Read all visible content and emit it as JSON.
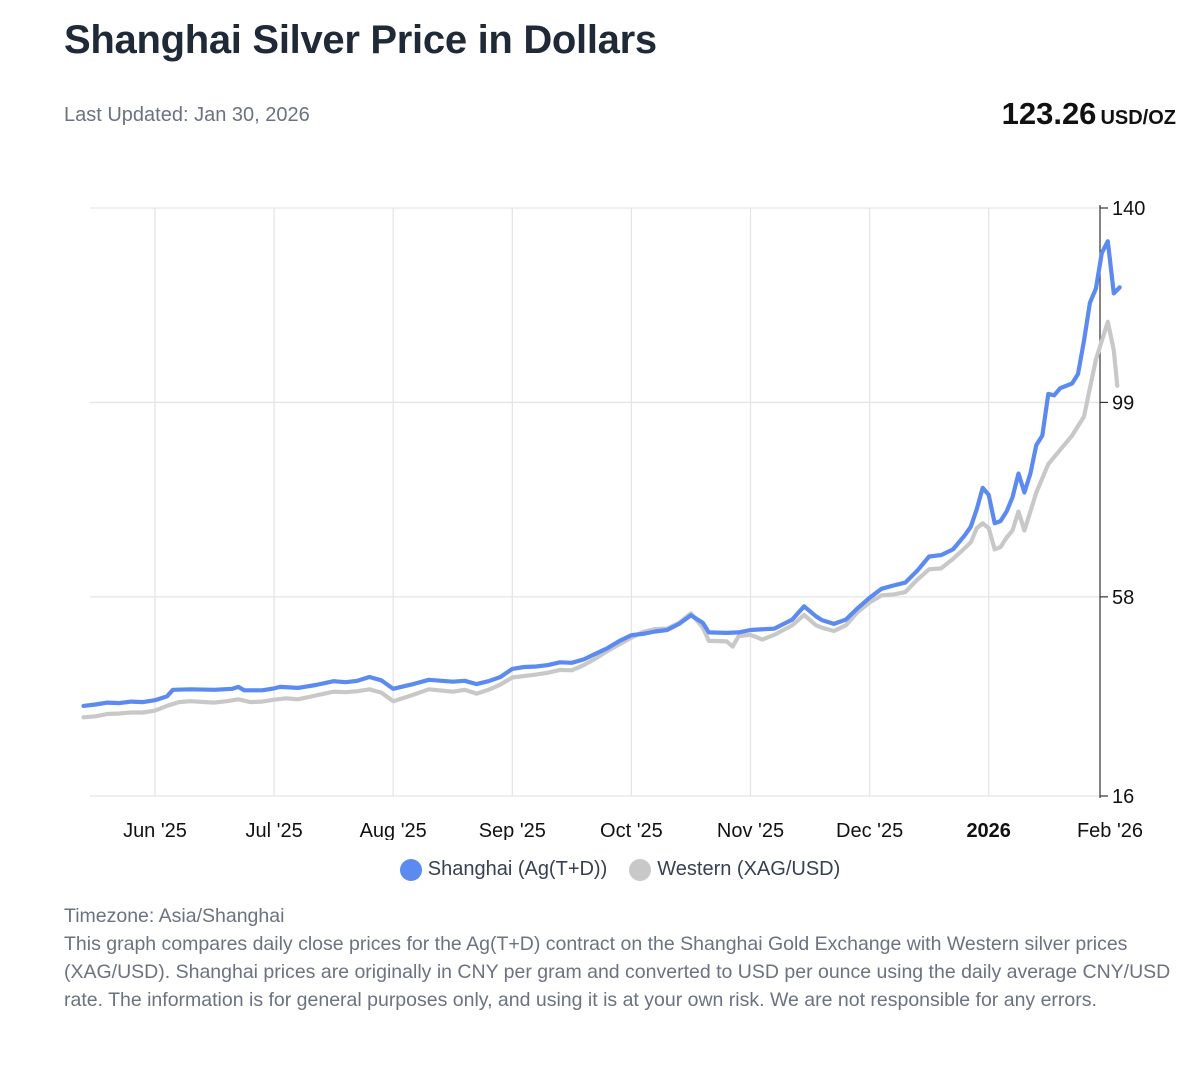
{
  "page": {
    "title": "Shanghai Silver Price in Dollars",
    "last_updated": "Last Updated: Jan 30, 2026",
    "current_price": "123.26",
    "current_unit": "USD/OZ"
  },
  "legend": {
    "shanghai": "Shanghai (Ag(T+D))",
    "western": "Western (XAG/USD)"
  },
  "footer": {
    "timezone": "Timezone: Asia/Shanghai",
    "description": "This graph compares daily close prices for the Ag(T+D) contract on the Shanghai Gold Exchange with Western silver prices (XAG/USD). Shanghai prices are originally in CNY per gram and converted to USD per ounce using the daily average CNY/USD rate. The information is for general purposes only, and using it is at your own risk. We are not responsible for any errors."
  },
  "colors": {
    "shanghai": "#5b8af0",
    "western": "#c8c8c8",
    "grid": "#e5e5e5",
    "axis": "#333333"
  },
  "chart_data": {
    "type": "line",
    "title": "Shanghai Silver Price in Dollars",
    "xlabel": "",
    "ylabel": "USD/OZ",
    "ylim": [
      16,
      140
    ],
    "y_ticks": [
      16,
      58,
      99,
      140
    ],
    "x_range": [
      -0.6,
      8.95
    ],
    "x_ticks": [
      {
        "label": "Jun '25",
        "x": 0,
        "bold": false
      },
      {
        "label": "Jul '25",
        "x": 1,
        "bold": false
      },
      {
        "label": "Aug '25",
        "x": 2,
        "bold": false
      },
      {
        "label": "Sep '25",
        "x": 3,
        "bold": false
      },
      {
        "label": "Oct '25",
        "x": 4,
        "bold": false
      },
      {
        "label": "Nov '25",
        "x": 5,
        "bold": false
      },
      {
        "label": "Dec '25",
        "x": 6,
        "bold": false
      },
      {
        "label": "2026",
        "x": 7,
        "bold": true
      },
      {
        "label": "Feb '26",
        "x": 8,
        "bold": false
      }
    ],
    "x_unit": "months since Jun 1, 2025",
    "grid": true,
    "legend_position": "bottom-center",
    "series": [
      {
        "name": "Shanghai (Ag(T+D))",
        "color": "#5b8af0",
        "points": [
          [
            -0.6,
            35.0
          ],
          [
            -0.5,
            35.3
          ],
          [
            -0.4,
            35.7
          ],
          [
            -0.3,
            35.6
          ],
          [
            -0.2,
            35.9
          ],
          [
            -0.1,
            35.8
          ],
          [
            0.0,
            36.2
          ],
          [
            0.1,
            37.0
          ],
          [
            0.15,
            38.4
          ],
          [
            0.3,
            38.5
          ],
          [
            0.5,
            38.4
          ],
          [
            0.65,
            38.6
          ],
          [
            0.7,
            39.0
          ],
          [
            0.75,
            38.3
          ],
          [
            0.9,
            38.3
          ],
          [
            1.0,
            38.7
          ],
          [
            1.05,
            39.0
          ],
          [
            1.2,
            38.8
          ],
          [
            1.35,
            39.4
          ],
          [
            1.5,
            40.2
          ],
          [
            1.6,
            40.0
          ],
          [
            1.7,
            40.3
          ],
          [
            1.8,
            41.1
          ],
          [
            1.9,
            40.4
          ],
          [
            2.0,
            38.6
          ],
          [
            2.15,
            39.5
          ],
          [
            2.3,
            40.5
          ],
          [
            2.5,
            40.1
          ],
          [
            2.6,
            40.3
          ],
          [
            2.7,
            39.6
          ],
          [
            2.8,
            40.2
          ],
          [
            2.9,
            41.1
          ],
          [
            3.0,
            42.8
          ],
          [
            3.1,
            43.2
          ],
          [
            3.2,
            43.3
          ],
          [
            3.3,
            43.6
          ],
          [
            3.4,
            44.2
          ],
          [
            3.5,
            44.1
          ],
          [
            3.6,
            44.8
          ],
          [
            3.7,
            46.0
          ],
          [
            3.8,
            47.2
          ],
          [
            3.9,
            48.7
          ],
          [
            4.0,
            49.9
          ],
          [
            4.1,
            50.2
          ],
          [
            4.2,
            50.7
          ],
          [
            4.3,
            51.0
          ],
          [
            4.4,
            52.3
          ],
          [
            4.5,
            54.1
          ],
          [
            4.6,
            52.5
          ],
          [
            4.65,
            50.5
          ],
          [
            4.8,
            50.4
          ],
          [
            4.9,
            50.5
          ],
          [
            5.0,
            51.0
          ],
          [
            5.2,
            51.3
          ],
          [
            5.35,
            53.2
          ],
          [
            5.45,
            56.0
          ],
          [
            5.55,
            53.9
          ],
          [
            5.6,
            53.1
          ],
          [
            5.7,
            52.3
          ],
          [
            5.8,
            53.2
          ],
          [
            5.9,
            55.6
          ],
          [
            6.0,
            57.8
          ],
          [
            6.1,
            59.7
          ],
          [
            6.2,
            60.4
          ],
          [
            6.3,
            61.0
          ],
          [
            6.4,
            63.5
          ],
          [
            6.5,
            66.5
          ],
          [
            6.6,
            66.8
          ],
          [
            6.7,
            68.0
          ],
          [
            6.8,
            71.0
          ],
          [
            6.85,
            72.8
          ],
          [
            6.9,
            76.5
          ],
          [
            6.95,
            81.0
          ],
          [
            7.0,
            79.5
          ],
          [
            7.05,
            73.5
          ],
          [
            7.1,
            74.0
          ],
          [
            7.15,
            76.0
          ],
          [
            7.2,
            79.0
          ],
          [
            7.25,
            84.0
          ],
          [
            7.3,
            80.0
          ],
          [
            7.35,
            84.0
          ],
          [
            7.4,
            90.0
          ],
          [
            7.45,
            92.0
          ],
          [
            7.5,
            100.8
          ],
          [
            7.55,
            100.5
          ],
          [
            7.6,
            102.0
          ],
          [
            7.7,
            103.0
          ],
          [
            7.75,
            105.0
          ],
          [
            7.8,
            112.0
          ],
          [
            7.85,
            120.0
          ],
          [
            7.9,
            123.0
          ],
          [
            7.95,
            130.5
          ],
          [
            8.0,
            133.0
          ],
          [
            8.05,
            122.0
          ],
          [
            8.1,
            123.26
          ]
        ]
      },
      {
        "name": "Western (XAG/USD)",
        "color": "#c8c8c8",
        "points": [
          [
            -0.6,
            32.6
          ],
          [
            -0.5,
            32.8
          ],
          [
            -0.4,
            33.3
          ],
          [
            -0.3,
            33.4
          ],
          [
            -0.2,
            33.6
          ],
          [
            -0.1,
            33.6
          ],
          [
            0.0,
            34.0
          ],
          [
            0.1,
            35.0
          ],
          [
            0.2,
            35.8
          ],
          [
            0.3,
            36.0
          ],
          [
            0.5,
            35.7
          ],
          [
            0.6,
            36.0
          ],
          [
            0.7,
            36.4
          ],
          [
            0.8,
            35.8
          ],
          [
            0.9,
            35.9
          ],
          [
            1.0,
            36.3
          ],
          [
            1.1,
            36.6
          ],
          [
            1.2,
            36.4
          ],
          [
            1.35,
            37.2
          ],
          [
            1.5,
            38.0
          ],
          [
            1.6,
            37.9
          ],
          [
            1.7,
            38.1
          ],
          [
            1.8,
            38.5
          ],
          [
            1.9,
            37.8
          ],
          [
            2.0,
            36.0
          ],
          [
            2.15,
            37.2
          ],
          [
            2.3,
            38.5
          ],
          [
            2.5,
            38.0
          ],
          [
            2.6,
            38.4
          ],
          [
            2.7,
            37.6
          ],
          [
            2.8,
            38.4
          ],
          [
            2.9,
            39.5
          ],
          [
            3.0,
            41.0
          ],
          [
            3.1,
            41.3
          ],
          [
            3.2,
            41.6
          ],
          [
            3.3,
            42.0
          ],
          [
            3.4,
            42.6
          ],
          [
            3.5,
            42.5
          ],
          [
            3.6,
            43.6
          ],
          [
            3.7,
            45.0
          ],
          [
            3.8,
            46.6
          ],
          [
            3.9,
            48.0
          ],
          [
            4.0,
            49.4
          ],
          [
            4.1,
            50.6
          ],
          [
            4.2,
            51.2
          ],
          [
            4.3,
            51.3
          ],
          [
            4.4,
            52.5
          ],
          [
            4.5,
            54.5
          ],
          [
            4.6,
            51.5
          ],
          [
            4.65,
            48.7
          ],
          [
            4.8,
            48.6
          ],
          [
            4.85,
            47.5
          ],
          [
            4.9,
            49.7
          ],
          [
            5.0,
            50.0
          ],
          [
            5.1,
            49.0
          ],
          [
            5.2,
            50.0
          ],
          [
            5.35,
            52.0
          ],
          [
            5.45,
            54.2
          ],
          [
            5.55,
            52.0
          ],
          [
            5.6,
            51.5
          ],
          [
            5.7,
            50.8
          ],
          [
            5.8,
            52.0
          ],
          [
            5.9,
            54.8
          ],
          [
            6.0,
            56.8
          ],
          [
            6.1,
            58.3
          ],
          [
            6.2,
            58.5
          ],
          [
            6.3,
            59.0
          ],
          [
            6.4,
            61.6
          ],
          [
            6.5,
            63.8
          ],
          [
            6.6,
            64.0
          ],
          [
            6.7,
            66.0
          ],
          [
            6.8,
            68.3
          ],
          [
            6.85,
            69.5
          ],
          [
            6.9,
            72.5
          ],
          [
            6.95,
            73.5
          ],
          [
            7.0,
            72.5
          ],
          [
            7.05,
            68.0
          ],
          [
            7.1,
            68.5
          ],
          [
            7.15,
            70.5
          ],
          [
            7.2,
            72.0
          ],
          [
            7.25,
            76.0
          ],
          [
            7.3,
            72.0
          ],
          [
            7.35,
            76.0
          ],
          [
            7.4,
            80.0
          ],
          [
            7.5,
            86.0
          ],
          [
            7.6,
            89.0
          ],
          [
            7.7,
            92.0
          ],
          [
            7.75,
            94.0
          ],
          [
            7.8,
            96.0
          ],
          [
            7.85,
            102.0
          ],
          [
            7.9,
            108.0
          ],
          [
            7.95,
            112.0
          ],
          [
            8.0,
            116.0
          ],
          [
            8.05,
            110.0
          ],
          [
            8.08,
            102.5
          ]
        ]
      }
    ]
  }
}
